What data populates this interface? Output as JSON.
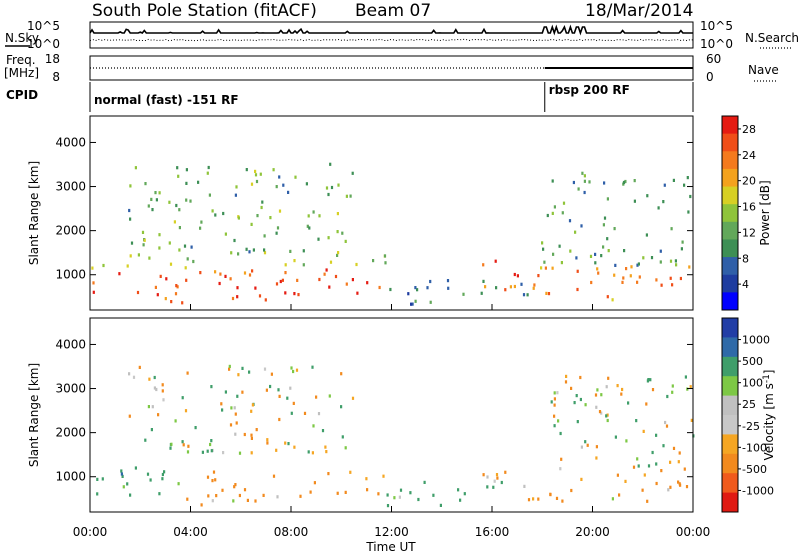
{
  "header": {
    "station": "South Pole Station (fitACF)",
    "beam": "Beam 07",
    "date": "18/Mar/2014"
  },
  "aux_labels": {
    "nsky": "N.Sky",
    "nsearch": "N.Search",
    "freq": "Freq.",
    "freq_unit": "[MHz]",
    "nave": "Nave",
    "cpid": "CPID",
    "noise_top": "10^5",
    "noise_bot": "10^0",
    "freq_top": "18",
    "freq_bot": "8",
    "nave_top": "60",
    "nave_bot": "0"
  },
  "cpid_modes": [
    {
      "label": "normal (fast) -151 RF",
      "start_hour": 0
    },
    {
      "label": "rbsp 200 RF",
      "start_hour": 18.1
    }
  ],
  "colors": {
    "power": [
      "#0000ff",
      "#1e3c9f",
      "#2f5fa8",
      "#3d8f55",
      "#62a85a",
      "#8fc43a",
      "#d7d024",
      "#f4a21d",
      "#f47a1e",
      "#f04e18",
      "#e51b12"
    ],
    "velocity": [
      "#e01a12",
      "#f05a1c",
      "#f28a1e",
      "#f5a623",
      "#c8c8c8",
      "#c0c0c0",
      "#7dc845",
      "#3f9e6a",
      "#2f6aa8",
      "#223ea6"
    ],
    "noise_line": "#000000"
  },
  "chart_data": [
    {
      "type": "heatmap",
      "title": "",
      "xlabel": "",
      "ylabel": "Slant Range [km]",
      "xlim": [
        0,
        24
      ],
      "ylim": [
        200,
        4600
      ],
      "x_ticks": [
        "00:00",
        "04:00",
        "08:00",
        "12:00",
        "16:00",
        "20:00",
        "00:00"
      ],
      "y_ticks": [
        1000,
        2000,
        3000,
        4000
      ],
      "colorbar": {
        "label": "Power [dB]",
        "ticks": [
          4,
          8,
          12,
          16,
          20,
          24,
          28
        ],
        "range": [
          0,
          30
        ]
      },
      "regions": [
        {
          "t0": 0,
          "t1": 11.8,
          "r0": 350,
          "r1": 1100,
          "value": 27
        },
        {
          "t0": 0,
          "t1": 11.8,
          "r0": 1100,
          "r1": 1500,
          "value": 16
        },
        {
          "t0": 1.5,
          "t1": 10.5,
          "r0": 1500,
          "r1": 3500,
          "value": 12
        },
        {
          "t0": 11.8,
          "t1": 17.5,
          "r0": 300,
          "r1": 900,
          "value": 8
        },
        {
          "t0": 15.5,
          "t1": 17.9,
          "r0": 500,
          "r1": 1300,
          "value": 26
        },
        {
          "t0": 17.9,
          "t1": 24,
          "r0": 400,
          "r1": 1200,
          "value": 24
        },
        {
          "t0": 17.9,
          "t1": 24,
          "r0": 1200,
          "r1": 3300,
          "value": 10
        }
      ]
    },
    {
      "type": "heatmap",
      "title": "",
      "xlabel": "Time UT",
      "ylabel": "Slant Range [km]",
      "xlim": [
        0,
        24
      ],
      "ylim": [
        200,
        4600
      ],
      "x_ticks": [
        "00:00",
        "04:00",
        "08:00",
        "12:00",
        "16:00",
        "20:00",
        "00:00"
      ],
      "y_ticks": [
        1000,
        2000,
        3000,
        4000
      ],
      "colorbar": {
        "label": "Velocity [m s^-1]",
        "ticks": [
          "1000",
          "500",
          "100",
          "25",
          "-25",
          "-100",
          "-500",
          "-1000"
        ]
      },
      "regions": [
        {
          "t0": 0,
          "t1": 3.5,
          "r0": 350,
          "r1": 1200,
          "value": 300
        },
        {
          "t0": 3.5,
          "t1": 11.8,
          "r0": 350,
          "r1": 1100,
          "value": -200
        },
        {
          "t0": 1.5,
          "t1": 10.5,
          "r0": 1500,
          "r1": 3500,
          "value": 0
        },
        {
          "t0": 11.8,
          "t1": 17.5,
          "r0": 300,
          "r1": 900,
          "value": 200
        },
        {
          "t0": 15.5,
          "t1": 24,
          "r0": 400,
          "r1": 1200,
          "value": -200
        },
        {
          "t0": 17.9,
          "t1": 24,
          "r0": 1200,
          "r1": 3300,
          "value": 0
        }
      ]
    }
  ]
}
